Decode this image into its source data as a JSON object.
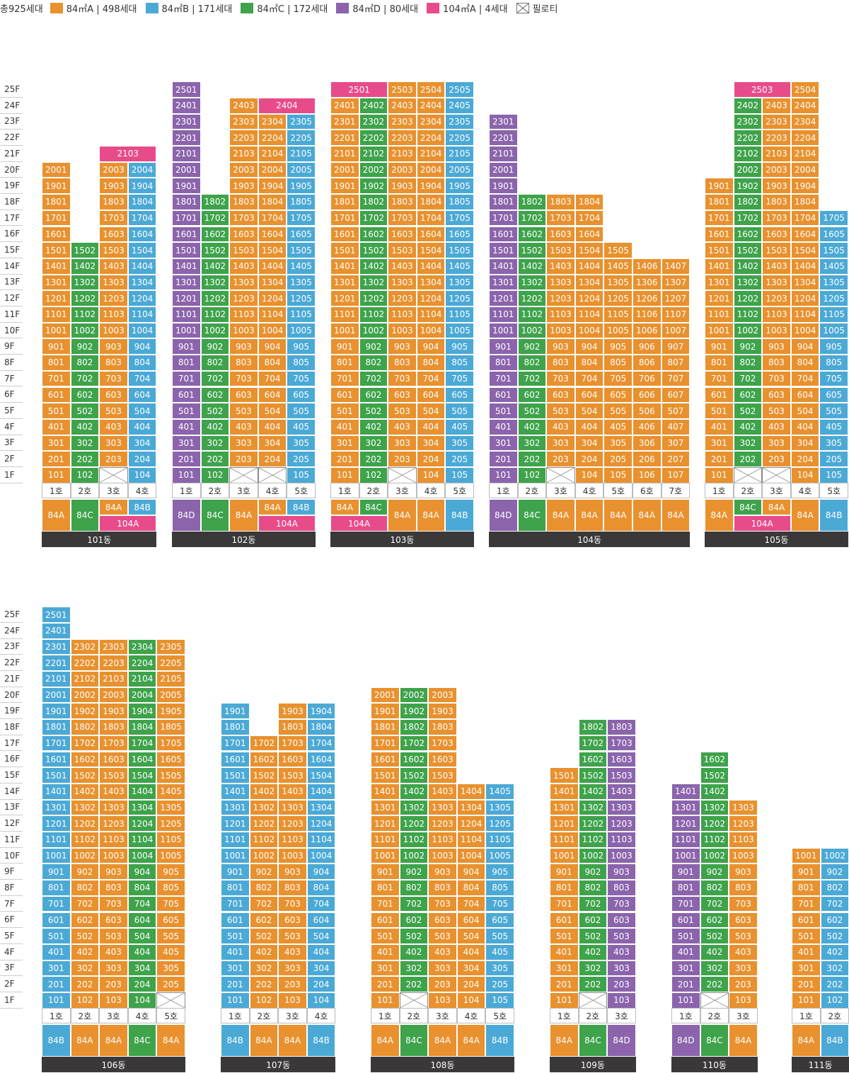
{
  "legend": {
    "total": "총925세대",
    "items": [
      {
        "label": "84㎡A | 498세대",
        "color": "#e8912e"
      },
      {
        "label": "84㎡B | 171세대",
        "color": "#4ba9d6"
      },
      {
        "label": "84㎡C | 172세대",
        "color": "#3ea34b"
      },
      {
        "label": "84㎡D | 80세대",
        "color": "#8b64ac"
      },
      {
        "label": "104㎡A | 4세대",
        "color": "#e84b8a"
      },
      {
        "label": "필로티",
        "color": "#ffffff"
      }
    ]
  },
  "type_colors": {
    "A": "#e8912e",
    "B": "#4ba9d6",
    "C": "#3ea34b",
    "D": "#8b64ac",
    "P": "#e84b8a"
  },
  "floor_labels": [
    "25F",
    "24F",
    "23F",
    "22F",
    "21F",
    "20F",
    "19F",
    "18F",
    "17F",
    "16F",
    "15F",
    "14F",
    "13F",
    "12F",
    "11F",
    "10F",
    "9F",
    "8F",
    "7F",
    "6F",
    "5F",
    "4F",
    "3F",
    "2F",
    "1F"
  ],
  "buildings": [
    {
      "name": "101동",
      "row": 0,
      "lines": [
        {
          "ho": "1호",
          "type": "84A",
          "t": "A",
          "top": 20
        },
        {
          "ho": "2호",
          "type": "84C",
          "t": "C",
          "top": 15
        },
        {
          "ho": "3호",
          "type": "84A",
          "t": "A",
          "top": 20,
          "pilotis": [
            1
          ]
        },
        {
          "ho": "4호",
          "type": "84B",
          "t": "B",
          "top": 20
        }
      ],
      "big": [
        {
          "num": "2103",
          "t": "P",
          "floor": 21,
          "from": 2,
          "span": 2
        }
      ],
      "bottom": [
        {
          "label": "84A",
          "cols": [
            0
          ],
          "h": "full",
          "t": "A"
        },
        {
          "label": "84C",
          "cols": [
            1
          ],
          "h": "full",
          "t": "C"
        },
        {
          "label": "84A",
          "cols": [
            2
          ],
          "h": "top",
          "t": "A"
        },
        {
          "label": "84B",
          "cols": [
            3
          ],
          "h": "top",
          "t": "B"
        },
        {
          "label": "104A",
          "cols": [
            2,
            3
          ],
          "h": "bot",
          "t": "P"
        }
      ]
    },
    {
      "name": "102동",
      "row": 0,
      "lines": [
        {
          "ho": "1호",
          "type": "84D",
          "t": "D",
          "top": 25
        },
        {
          "ho": "2호",
          "type": "84C",
          "t": "C",
          "top": 18
        },
        {
          "ho": "3호",
          "type": "84A",
          "t": "A",
          "top": 24,
          "pilotis": [
            1
          ]
        },
        {
          "ho": "4호",
          "type": "84A",
          "t": "A",
          "top": 23,
          "pilotis": [
            1
          ]
        },
        {
          "ho": "5호",
          "type": "84B",
          "t": "B",
          "top": 23
        }
      ],
      "big": [
        {
          "num": "2404",
          "t": "P",
          "floor": 24,
          "from": 3,
          "span": 2
        }
      ],
      "bottom": [
        {
          "label": "84D",
          "cols": [
            0
          ],
          "h": "full",
          "t": "D"
        },
        {
          "label": "84C",
          "cols": [
            1
          ],
          "h": "full",
          "t": "C"
        },
        {
          "label": "84A",
          "cols": [
            2
          ],
          "h": "full",
          "t": "A"
        },
        {
          "label": "84A",
          "cols": [
            3
          ],
          "h": "top",
          "t": "A"
        },
        {
          "label": "84B",
          "cols": [
            4
          ],
          "h": "top",
          "t": "B"
        },
        {
          "label": "104A",
          "cols": [
            3,
            4
          ],
          "h": "bot",
          "t": "P"
        }
      ]
    },
    {
      "name": "103동",
      "row": 0,
      "lines": [
        {
          "ho": "1호",
          "type": "84A",
          "t": "A",
          "top": 24
        },
        {
          "ho": "2호",
          "type": "84C",
          "t": "C",
          "top": 24
        },
        {
          "ho": "3호",
          "type": "84A",
          "t": "A",
          "top": 25,
          "pilotis": [
            1
          ]
        },
        {
          "ho": "4호",
          "type": "84A",
          "t": "A",
          "top": 25
        },
        {
          "ho": "5호",
          "type": "84B",
          "t": "B",
          "top": 25
        }
      ],
      "big": [
        {
          "num": "2501",
          "t": "P",
          "floor": 25,
          "from": 0,
          "span": 2
        }
      ],
      "bottom": [
        {
          "label": "84A",
          "cols": [
            0
          ],
          "h": "top",
          "t": "A"
        },
        {
          "label": "84C",
          "cols": [
            1
          ],
          "h": "top",
          "t": "C"
        },
        {
          "label": "104A",
          "cols": [
            0,
            1
          ],
          "h": "bot",
          "t": "P"
        },
        {
          "label": "84A",
          "cols": [
            2
          ],
          "h": "full",
          "t": "A"
        },
        {
          "label": "84A",
          "cols": [
            3
          ],
          "h": "full",
          "t": "A"
        },
        {
          "label": "84B",
          "cols": [
            4
          ],
          "h": "full",
          "t": "B"
        }
      ]
    },
    {
      "name": "104동",
      "row": 0,
      "lines": [
        {
          "ho": "1호",
          "type": "84D",
          "t": "D",
          "top": 23
        },
        {
          "ho": "2호",
          "type": "84C",
          "t": "C",
          "top": 18
        },
        {
          "ho": "3호",
          "type": "84A",
          "t": "A",
          "top": 18,
          "pilotis": [
            1
          ]
        },
        {
          "ho": "4호",
          "type": "84A",
          "t": "A",
          "top": 18
        },
        {
          "ho": "5호",
          "type": "84A",
          "t": "A",
          "top": 15
        },
        {
          "ho": "6호",
          "type": "84A",
          "t": "A",
          "top": 14
        },
        {
          "ho": "7호",
          "type": "84A",
          "t": "A",
          "top": 14
        }
      ],
      "big": [],
      "bottom": [
        {
          "label": "84D",
          "cols": [
            0
          ],
          "h": "full",
          "t": "D"
        },
        {
          "label": "84C",
          "cols": [
            1
          ],
          "h": "full",
          "t": "C"
        },
        {
          "label": "84A",
          "cols": [
            2
          ],
          "h": "full",
          "t": "A"
        },
        {
          "label": "84A",
          "cols": [
            3
          ],
          "h": "full",
          "t": "A"
        },
        {
          "label": "84A",
          "cols": [
            4
          ],
          "h": "full",
          "t": "A"
        },
        {
          "label": "84A",
          "cols": [
            5
          ],
          "h": "full",
          "t": "A"
        },
        {
          "label": "84A",
          "cols": [
            6
          ],
          "h": "full",
          "t": "A"
        }
      ]
    },
    {
      "name": "105동",
      "row": 0,
      "lines": [
        {
          "ho": "1호",
          "type": "84A",
          "t": "A",
          "top": 19
        },
        {
          "ho": "2호",
          "type": "84C",
          "t": "C",
          "top": 24,
          "pilotis": [
            1
          ]
        },
        {
          "ho": "3호",
          "type": "84A",
          "t": "A",
          "top": 24,
          "pilotis": [
            1
          ]
        },
        {
          "ho": "4호",
          "type": "84A",
          "t": "A",
          "top": 25
        },
        {
          "ho": "5호",
          "type": "84B",
          "t": "B",
          "top": 17
        }
      ],
      "big": [
        {
          "num": "2503",
          "t": "P",
          "floor": 25,
          "from": 1,
          "span": 2
        }
      ],
      "bottom": [
        {
          "label": "84A",
          "cols": [
            0
          ],
          "h": "full",
          "t": "A"
        },
        {
          "label": "84C",
          "cols": [
            1
          ],
          "h": "top",
          "t": "C"
        },
        {
          "label": "84A",
          "cols": [
            2
          ],
          "h": "top",
          "t": "A"
        },
        {
          "label": "104A",
          "cols": [
            1,
            2
          ],
          "h": "bot",
          "t": "P"
        },
        {
          "label": "84A",
          "cols": [
            3
          ],
          "h": "full",
          "t": "A"
        },
        {
          "label": "84B",
          "cols": [
            4
          ],
          "h": "full",
          "t": "B"
        }
      ]
    },
    {
      "name": "106동",
      "row": 1,
      "lines": [
        {
          "ho": "1호",
          "type": "84B",
          "t": "B",
          "top": 25
        },
        {
          "ho": "2호",
          "type": "84A",
          "t": "A",
          "top": 23
        },
        {
          "ho": "3호",
          "type": "84A",
          "t": "A",
          "top": 23
        },
        {
          "ho": "4호",
          "type": "84C",
          "t": "C",
          "top": 23
        },
        {
          "ho": "5호",
          "type": "84A",
          "t": "A",
          "top": 23,
          "pilotis": [
            1
          ]
        }
      ],
      "big": [],
      "bottom": [
        {
          "label": "84B",
          "cols": [
            0
          ],
          "h": "full",
          "t": "B"
        },
        {
          "label": "84A",
          "cols": [
            1
          ],
          "h": "full",
          "t": "A"
        },
        {
          "label": "84A",
          "cols": [
            2
          ],
          "h": "full",
          "t": "A"
        },
        {
          "label": "84C",
          "cols": [
            3
          ],
          "h": "full",
          "t": "C"
        },
        {
          "label": "84A",
          "cols": [
            4
          ],
          "h": "full",
          "t": "A"
        }
      ]
    },
    {
      "name": "107동",
      "row": 1,
      "lines": [
        {
          "ho": "1호",
          "type": "84B",
          "t": "B",
          "top": 19
        },
        {
          "ho": "2호",
          "type": "84A",
          "t": "A",
          "top": 17
        },
        {
          "ho": "3호",
          "type": "84A",
          "t": "A",
          "top": 19
        },
        {
          "ho": "4호",
          "type": "84B",
          "t": "B",
          "top": 19
        }
      ],
      "big": [],
      "bottom": [
        {
          "label": "84B",
          "cols": [
            0
          ],
          "h": "full",
          "t": "B"
        },
        {
          "label": "84A",
          "cols": [
            1
          ],
          "h": "full",
          "t": "A"
        },
        {
          "label": "84A",
          "cols": [
            2
          ],
          "h": "full",
          "t": "A"
        },
        {
          "label": "84B",
          "cols": [
            3
          ],
          "h": "full",
          "t": "B"
        }
      ]
    },
    {
      "name": "108동",
      "row": 1,
      "lines": [
        {
          "ho": "1호",
          "type": "84A",
          "t": "A",
          "top": 20
        },
        {
          "ho": "2호",
          "type": "84C",
          "t": "C",
          "top": 20,
          "pilotis": [
            1
          ]
        },
        {
          "ho": "3호",
          "type": "84A",
          "t": "A",
          "top": 20
        },
        {
          "ho": "4호",
          "type": "84A",
          "t": "A",
          "top": 14
        },
        {
          "ho": "5호",
          "type": "84B",
          "t": "B",
          "top": 14
        }
      ],
      "big": [],
      "bottom": [
        {
          "label": "84A",
          "cols": [
            0
          ],
          "h": "full",
          "t": "A"
        },
        {
          "label": "84C",
          "cols": [
            1
          ],
          "h": "full",
          "t": "C"
        },
        {
          "label": "84A",
          "cols": [
            2
          ],
          "h": "full",
          "t": "A"
        },
        {
          "label": "84A",
          "cols": [
            3
          ],
          "h": "full",
          "t": "A"
        },
        {
          "label": "84B",
          "cols": [
            4
          ],
          "h": "full",
          "t": "B"
        }
      ]
    },
    {
      "name": "109동",
      "row": 1,
      "lines": [
        {
          "ho": "1호",
          "type": "84A",
          "t": "A",
          "top": 15
        },
        {
          "ho": "2호",
          "type": "84C",
          "t": "C",
          "top": 18,
          "pilotis": [
            1
          ]
        },
        {
          "ho": "3호",
          "type": "84D",
          "t": "D",
          "top": 18
        }
      ],
      "big": [],
      "bottom": [
        {
          "label": "84A",
          "cols": [
            0
          ],
          "h": "full",
          "t": "A"
        },
        {
          "label": "84C",
          "cols": [
            1
          ],
          "h": "full",
          "t": "C"
        },
        {
          "label": "84D",
          "cols": [
            2
          ],
          "h": "full",
          "t": "D"
        }
      ]
    },
    {
      "name": "110동",
      "row": 1,
      "lines": [
        {
          "ho": "1호",
          "type": "84D",
          "t": "D",
          "top": 14
        },
        {
          "ho": "2호",
          "type": "84C",
          "t": "C",
          "top": 16,
          "pilotis": [
            1
          ]
        },
        {
          "ho": "3호",
          "type": "84A",
          "t": "A",
          "top": 13
        }
      ],
      "big": [],
      "bottom": [
        {
          "label": "84D",
          "cols": [
            0
          ],
          "h": "full",
          "t": "D"
        },
        {
          "label": "84C",
          "cols": [
            1
          ],
          "h": "full",
          "t": "C"
        },
        {
          "label": "84A",
          "cols": [
            2
          ],
          "h": "full",
          "t": "A"
        }
      ]
    },
    {
      "name": "111동",
      "row": 1,
      "lines": [
        {
          "ho": "1호",
          "type": "84A",
          "t": "A",
          "top": 10
        },
        {
          "ho": "2호",
          "type": "84B",
          "t": "B",
          "top": 10
        }
      ],
      "big": [],
      "bottom": [
        {
          "label": "84A",
          "cols": [
            0
          ],
          "h": "full",
          "t": "A"
        },
        {
          "label": "84B",
          "cols": [
            1
          ],
          "h": "full",
          "t": "B"
        }
      ]
    }
  ]
}
